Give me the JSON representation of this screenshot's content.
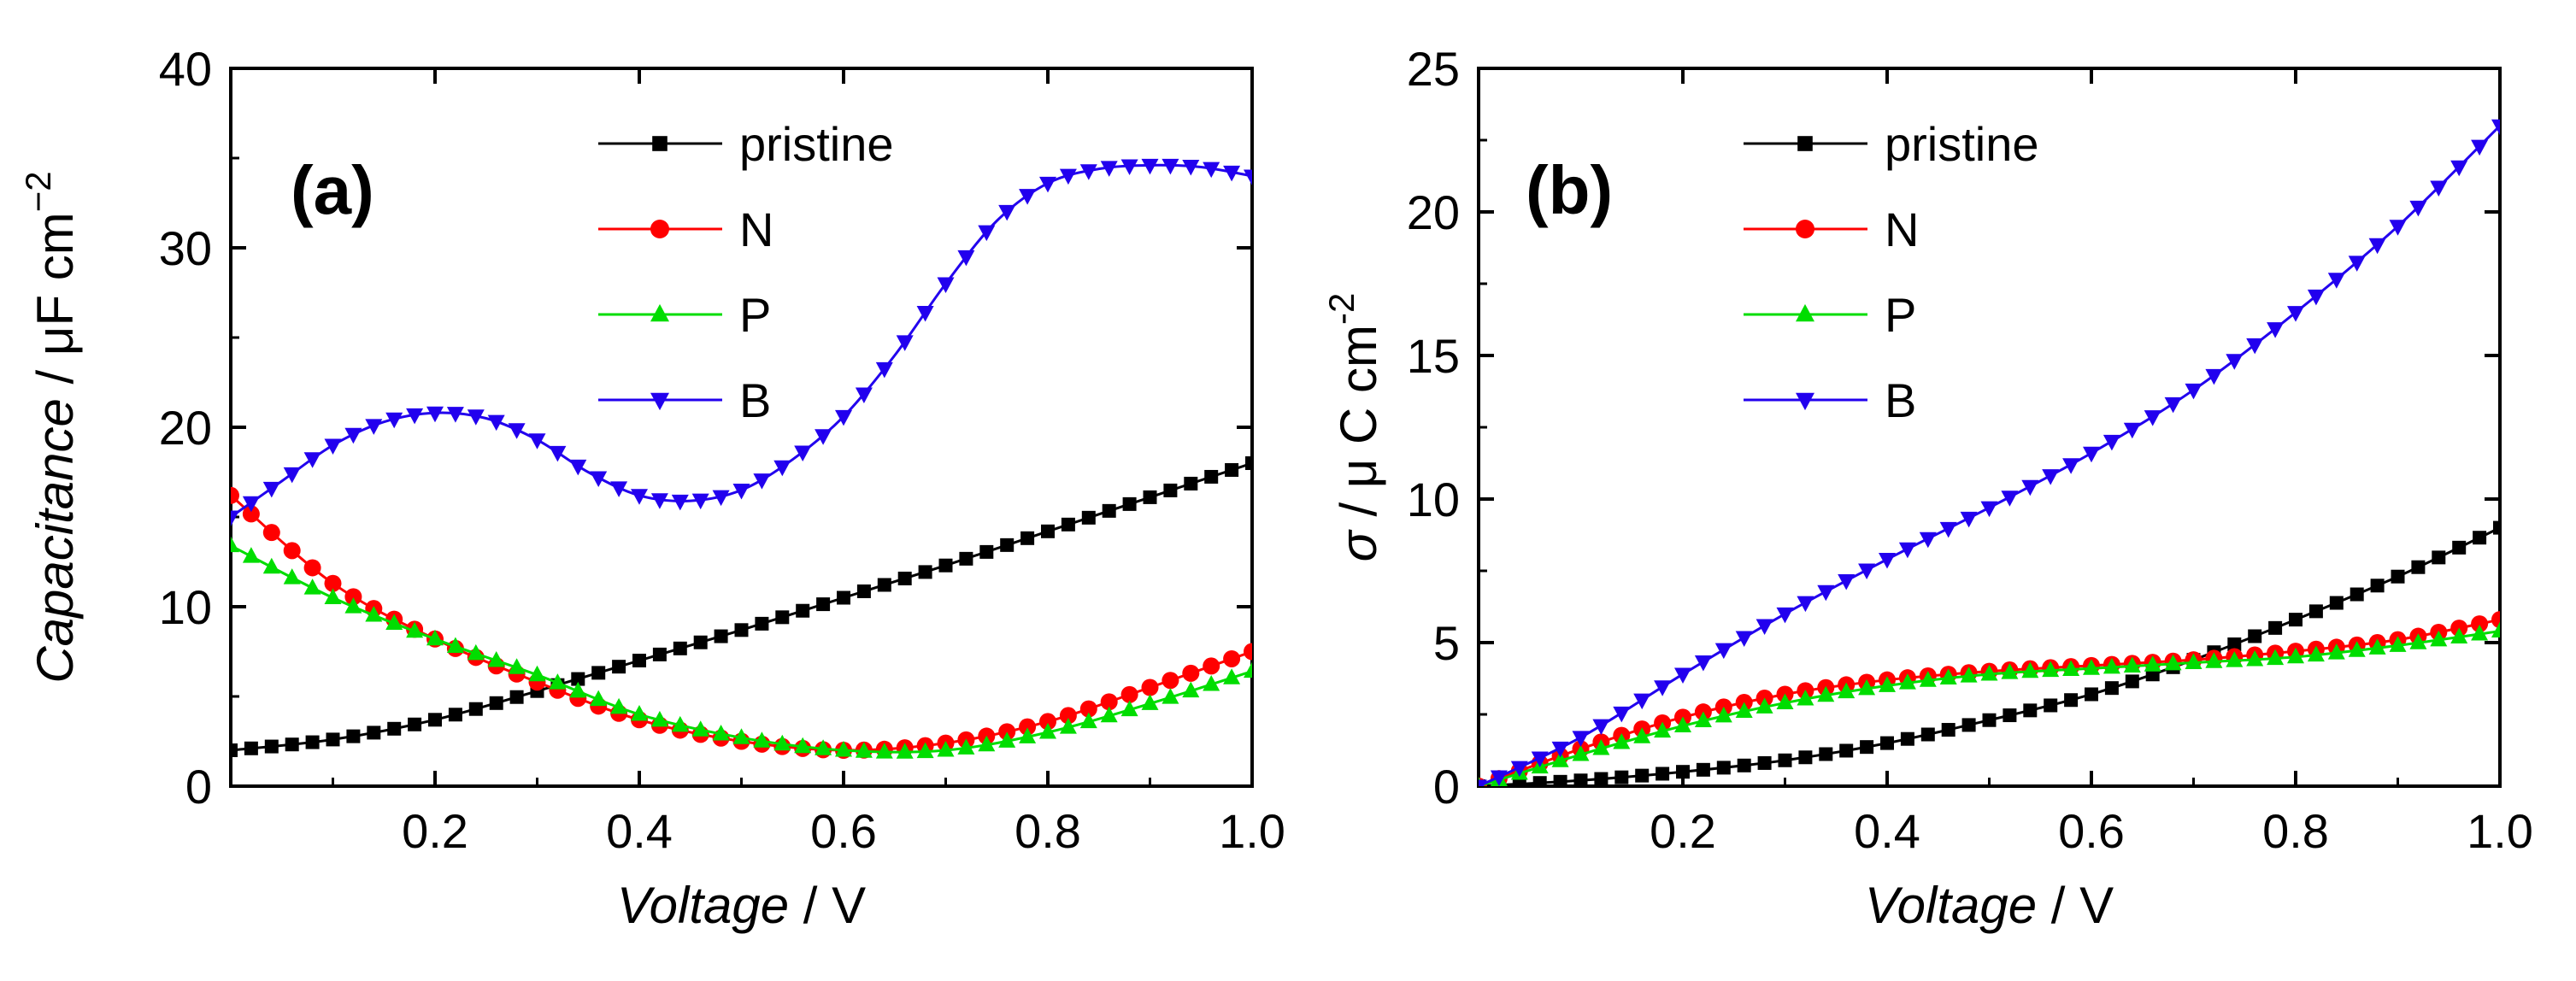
{
  "colors": {
    "pristine": "#000000",
    "N": "#ff0000",
    "P": "#00dd00",
    "B": "#2200ee"
  },
  "chart_data": [
    {
      "type": "line",
      "panel": "(a)",
      "xlabel": {
        "italic": "Voltage",
        "rest": " / V"
      },
      "ylabel": {
        "italic": "Capacitance",
        "rest": " / μF cm",
        "sup": "−2"
      },
      "xlim": [
        0,
        1.0
      ],
      "ylim": [
        0,
        40
      ],
      "xticks": [
        0.2,
        0.4,
        0.6,
        0.8,
        1.0
      ],
      "xtick_labels": [
        "0.2",
        "0.4",
        "0.6",
        "0.8",
        "1.0"
      ],
      "yticks": [
        0,
        10,
        20,
        30,
        40
      ],
      "ytick_labels": [
        "0",
        "10",
        "20",
        "30",
        "40"
      ],
      "legend_position": "top-center",
      "series": [
        {
          "name": "pristine",
          "marker": "square",
          "x": [
            0,
            0.1,
            0.2,
            0.3,
            0.4,
            0.5,
            0.6,
            0.7,
            0.8,
            0.9,
            1.0
          ],
          "y": [
            2.0,
            2.6,
            3.7,
            5.3,
            7.0,
            8.7,
            10.5,
            12.3,
            14.2,
            16.1,
            18.0
          ]
        },
        {
          "name": "N",
          "marker": "circle",
          "x": [
            0,
            0.1,
            0.2,
            0.3,
            0.4,
            0.5,
            0.6,
            0.7,
            0.8,
            0.9,
            1.0
          ],
          "y": [
            16.2,
            11.3,
            8.2,
            5.8,
            3.7,
            2.5,
            2.0,
            2.4,
            3.6,
            5.5,
            7.5
          ]
        },
        {
          "name": "P",
          "marker": "triangle-up",
          "x": [
            0,
            0.1,
            0.2,
            0.3,
            0.4,
            0.5,
            0.6,
            0.7,
            0.8,
            0.9,
            1.0
          ],
          "y": [
            13.4,
            10.5,
            8.2,
            6.2,
            4.0,
            2.7,
            2.0,
            2.0,
            3.0,
            4.6,
            6.4
          ]
        },
        {
          "name": "B",
          "marker": "triangle-down",
          "x": [
            0,
            0.05,
            0.1,
            0.15,
            0.2,
            0.25,
            0.3,
            0.35,
            0.4,
            0.45,
            0.5,
            0.55,
            0.6,
            0.65,
            0.7,
            0.75,
            0.8,
            0.85,
            0.9,
            0.95,
            1.0
          ],
          "y": [
            15.0,
            17.0,
            19.0,
            20.3,
            20.8,
            20.5,
            19.3,
            17.5,
            16.2,
            15.9,
            16.5,
            18.2,
            20.6,
            24.0,
            28.0,
            31.5,
            33.6,
            34.4,
            34.6,
            34.5,
            34.0
          ]
        }
      ]
    },
    {
      "type": "line",
      "panel": "(b)",
      "xlabel": {
        "italic": "Voltage",
        "rest": " / V"
      },
      "ylabel": {
        "italic": "σ",
        "rest": " / μ C cm",
        "sup": "-2"
      },
      "xlim": [
        0,
        1.0
      ],
      "ylim": [
        0,
        25
      ],
      "xticks": [
        0.2,
        0.4,
        0.6,
        0.8,
        1.0
      ],
      "xtick_labels": [
        "0.2",
        "0.4",
        "0.6",
        "0.8",
        "1.0"
      ],
      "yticks": [
        0,
        5,
        10,
        15,
        20,
        25
      ],
      "ytick_labels": [
        "0",
        "5",
        "10",
        "15",
        "20",
        "25"
      ],
      "legend_position": "top-center",
      "series": [
        {
          "name": "pristine",
          "marker": "square",
          "x": [
            0,
            0.1,
            0.2,
            0.3,
            0.4,
            0.5,
            0.6,
            0.7,
            0.8,
            0.9,
            1.0
          ],
          "y": [
            0.0,
            0.2,
            0.5,
            0.9,
            1.5,
            2.3,
            3.2,
            4.4,
            5.8,
            7.3,
            9.0
          ]
        },
        {
          "name": "N",
          "marker": "circle",
          "x": [
            0,
            0.1,
            0.2,
            0.3,
            0.4,
            0.5,
            0.6,
            0.7,
            0.8,
            0.9,
            1.0
          ],
          "y": [
            0.0,
            1.3,
            2.4,
            3.2,
            3.7,
            4.0,
            4.2,
            4.4,
            4.7,
            5.1,
            5.8
          ]
        },
        {
          "name": "P",
          "marker": "triangle-up",
          "x": [
            0,
            0.1,
            0.2,
            0.3,
            0.4,
            0.5,
            0.6,
            0.7,
            0.8,
            0.9,
            1.0
          ],
          "y": [
            0.0,
            1.1,
            2.1,
            2.9,
            3.5,
            3.9,
            4.1,
            4.3,
            4.5,
            4.9,
            5.4
          ]
        },
        {
          "name": "B",
          "marker": "triangle-down",
          "x": [
            0,
            0.1,
            0.2,
            0.3,
            0.4,
            0.5,
            0.6,
            0.7,
            0.8,
            0.9,
            1.0
          ],
          "y": [
            0.0,
            1.7,
            3.9,
            6.0,
            7.9,
            9.7,
            11.6,
            13.8,
            16.5,
            19.5,
            23.0
          ]
        }
      ]
    }
  ]
}
